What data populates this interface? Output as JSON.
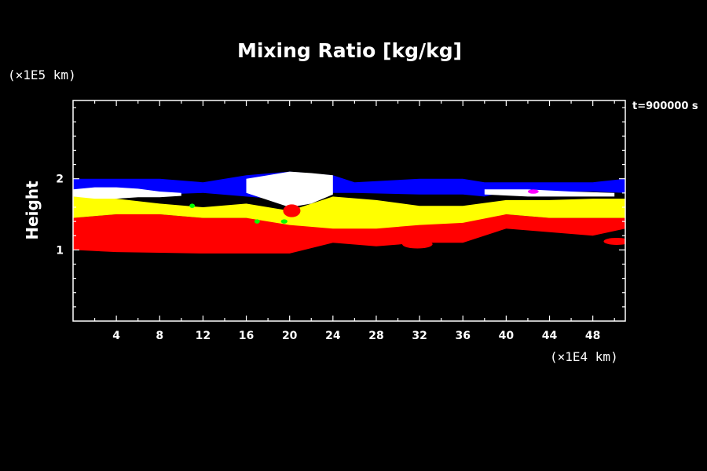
{
  "chart_data": {
    "type": "heatmap",
    "title": "Mixing Ratio [kg/kg]",
    "ylabel": "Height",
    "y_unit": "(×1E5 km)",
    "x_unit": "(×1E4 km)",
    "time": "t=900000 s",
    "xlim": [
      0,
      51
    ],
    "ylim": [
      0,
      3.1
    ],
    "x_ticks": [
      4,
      8,
      12,
      16,
      20,
      24,
      28,
      32,
      36,
      40,
      44,
      48
    ],
    "y_ticks": [
      1,
      2
    ],
    "colors": {
      "background": "#000000",
      "axes": "#ffffff",
      "white_level": "#ffffff",
      "blue_level": "#0000ff",
      "yellow_level": "#ffff00",
      "red_level": "#ff0000",
      "green_spots": "#00ff00",
      "magenta_spots": "#ff00ff"
    },
    "bands": [
      {
        "color": "#ff0000",
        "x": [
          0,
          4,
          8,
          12,
          16,
          20,
          24,
          28,
          32,
          36,
          40,
          44,
          48,
          51
        ],
        "top": [
          1.45,
          1.5,
          1.5,
          1.45,
          1.45,
          1.4,
          1.4,
          1.38,
          1.42,
          1.42,
          1.5,
          1.45,
          1.45,
          1.45
        ],
        "bottom": [
          1.0,
          0.97,
          0.96,
          0.95,
          0.95,
          0.95,
          1.1,
          1.05,
          1.1,
          1.1,
          1.3,
          1.25,
          1.2,
          1.3
        ]
      },
      {
        "color": "#ffff00",
        "x": [
          0,
          4,
          8,
          12,
          16,
          20,
          24,
          28,
          32,
          36,
          40,
          44,
          48,
          51
        ],
        "top": [
          1.75,
          1.72,
          1.65,
          1.6,
          1.65,
          1.55,
          1.75,
          1.7,
          1.62,
          1.62,
          1.7,
          1.7,
          1.72,
          1.72
        ],
        "bottom": [
          1.45,
          1.5,
          1.5,
          1.45,
          1.45,
          1.35,
          1.3,
          1.3,
          1.35,
          1.38,
          1.5,
          1.45,
          1.45,
          1.45
        ]
      },
      {
        "color": "#0000ff",
        "x": [
          0,
          4,
          8,
          12,
          16,
          20,
          24,
          26,
          32,
          36,
          38,
          40,
          44,
          48,
          51
        ],
        "top": [
          2.0,
          2.0,
          2.0,
          1.95,
          2.05,
          2.1,
          2.05,
          1.95,
          2.0,
          2.0,
          1.95,
          1.95,
          1.95,
          1.95,
          2.0
        ],
        "bottom": [
          1.82,
          1.82,
          1.78,
          1.8,
          1.75,
          1.7,
          1.8,
          1.8,
          1.78,
          1.78,
          1.75,
          1.82,
          1.82,
          1.82,
          1.8
        ]
      },
      {
        "color": "#ffffff",
        "x": [
          0,
          2,
          4,
          6,
          8,
          10
        ],
        "top": [
          1.85,
          1.88,
          1.88,
          1.86,
          1.82,
          1.8
        ],
        "bottom": [
          1.75,
          1.72,
          1.72,
          1.74,
          1.74,
          1.76
        ]
      },
      {
        "color": "#ffffff",
        "x": [
          16,
          18,
          20,
          22,
          24
        ],
        "top": [
          2.0,
          2.05,
          2.1,
          2.08,
          2.05
        ],
        "bottom": [
          1.8,
          1.7,
          1.6,
          1.65,
          1.78
        ]
      },
      {
        "color": "#ffffff",
        "x": [
          38,
          42,
          46,
          50
        ],
        "top": [
          1.85,
          1.85,
          1.82,
          1.8
        ],
        "bottom": [
          1.78,
          1.75,
          1.75,
          1.75
        ]
      }
    ],
    "blobs": [
      {
        "color": "#ff0000",
        "x": 20.2,
        "y": 1.55,
        "rx": 0.8,
        "ry": 0.09
      },
      {
        "color": "#ff0000",
        "x": 31.8,
        "y": 1.08,
        "rx": 1.4,
        "ry": 0.06
      },
      {
        "color": "#ff0000",
        "x": 50.2,
        "y": 1.12,
        "rx": 1.2,
        "ry": 0.05
      },
      {
        "color": "#00ff00",
        "x": 17.0,
        "y": 1.4,
        "rx": 0.25,
        "ry": 0.03
      },
      {
        "color": "#00ff00",
        "x": 19.5,
        "y": 1.4,
        "rx": 0.3,
        "ry": 0.03
      },
      {
        "color": "#00ff00",
        "x": 11.0,
        "y": 1.62,
        "rx": 0.25,
        "ry": 0.03
      },
      {
        "color": "#ff00ff",
        "x": 42.5,
        "y": 1.82,
        "rx": 0.5,
        "ry": 0.03
      }
    ]
  }
}
